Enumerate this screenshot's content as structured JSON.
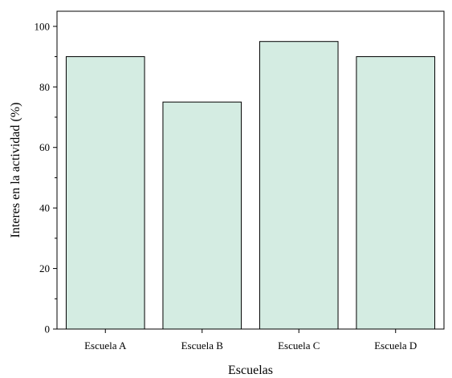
{
  "chart_data": {
    "type": "bar",
    "categories": [
      "Escuela A",
      "Escuela B",
      "Escuela C",
      "Escuela D"
    ],
    "values": [
      90,
      75,
      95,
      90
    ],
    "title": "",
    "xlabel": "Escuelas",
    "ylabel": "Interes en la actividad (%)",
    "ylim": [
      0,
      105
    ],
    "yticks": [
      0,
      20,
      40,
      60,
      80,
      100
    ],
    "grid": false,
    "legend": "none",
    "colors": {
      "bar_fill": "#d4ece2",
      "bar_stroke": "#000000",
      "axis": "#000000"
    }
  }
}
